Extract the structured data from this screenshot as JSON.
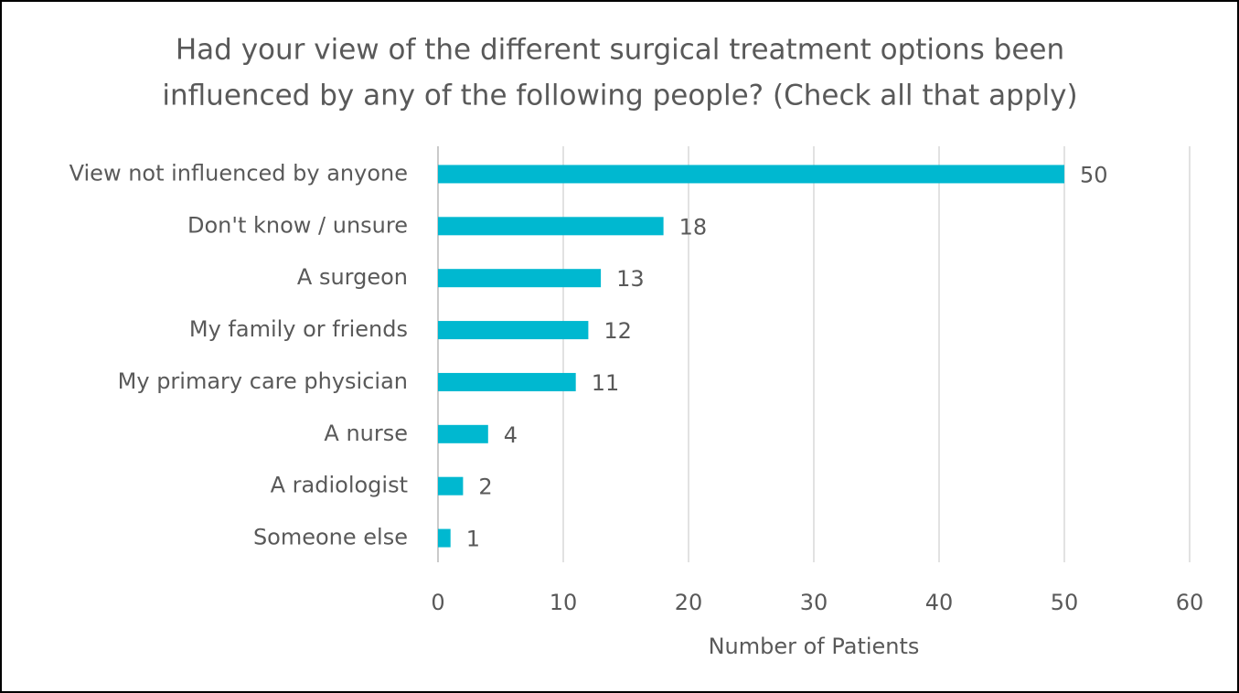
{
  "chart_data": {
    "type": "bar",
    "orientation": "horizontal",
    "title": [
      "Had your view of the different surgical treatment options been",
      "influenced by any of the following people?  (Check all that apply)"
    ],
    "categories": [
      "View not influenced by anyone",
      "Don't know / unsure",
      "A surgeon",
      "My family or friends",
      "My primary care physician",
      "A nurse",
      "A radiologist",
      "Someone else"
    ],
    "values": [
      50,
      18,
      13,
      12,
      11,
      4,
      2,
      1
    ],
    "color": "#00b8d0",
    "xlabel": "Number of Patients",
    "xlim": [
      0,
      60
    ],
    "xticks": [
      0,
      10,
      20,
      30,
      40,
      50,
      60
    ],
    "grid": true
  }
}
